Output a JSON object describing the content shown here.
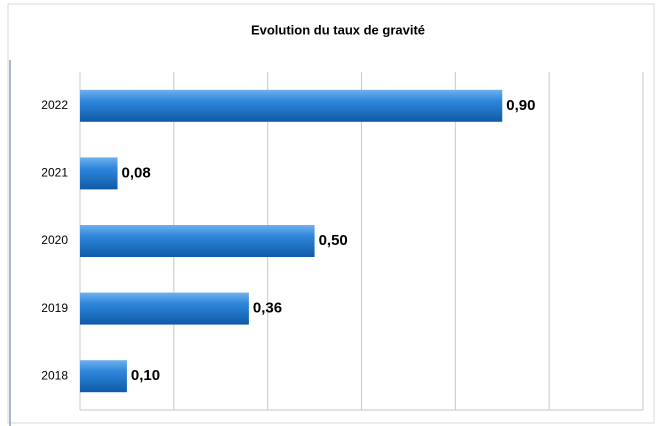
{
  "chart_data": {
    "type": "hbar",
    "title": "Evolution du taux de gravité",
    "categories": [
      "2022",
      "2021",
      "2020",
      "2019",
      "2018"
    ],
    "values": [
      0.9,
      0.08,
      0.5,
      0.36,
      0.1
    ],
    "value_labels": [
      "0,90",
      "0,08",
      "0,50",
      "0,36",
      "0,10"
    ],
    "color": "#1f73c8",
    "xlim": [
      0,
      1.2
    ],
    "xticks": [
      0,
      0.2,
      0.4,
      0.6,
      0.8,
      1.0,
      1.2
    ],
    "grid": true
  }
}
